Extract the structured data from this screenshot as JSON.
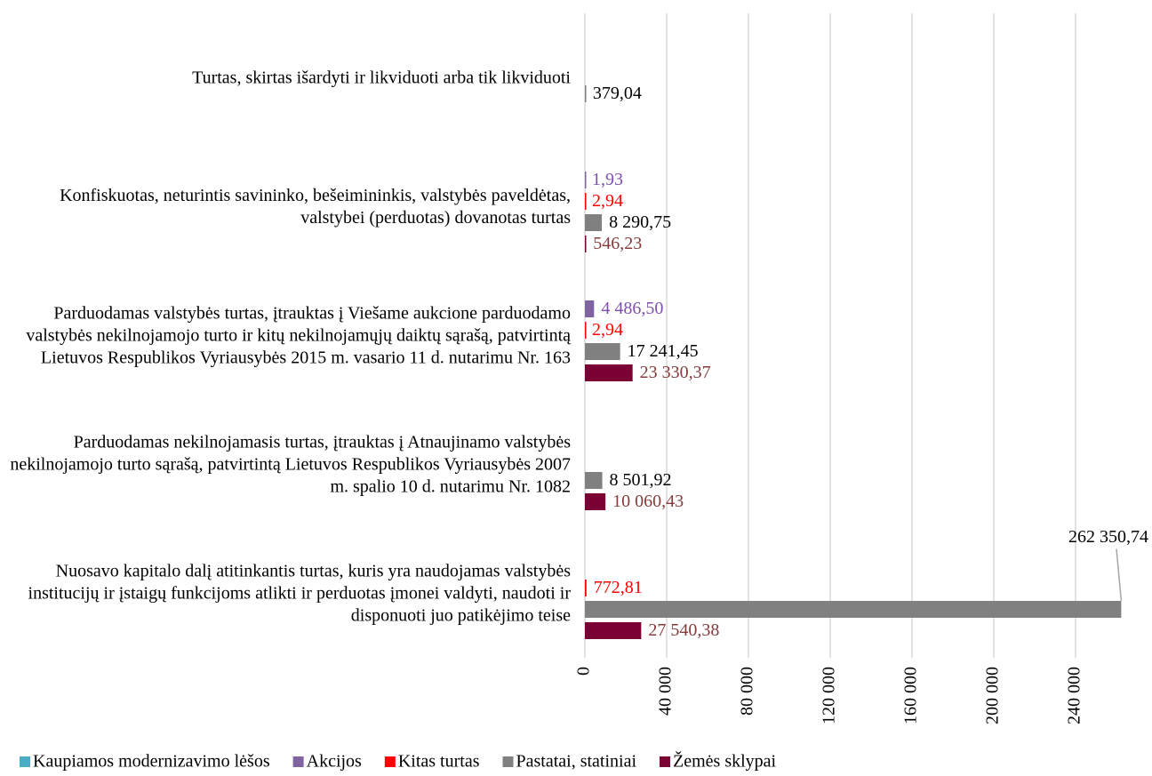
{
  "chart_data": {
    "type": "hbar",
    "categories": [
      "Turtas, skirtas išardyti ir likviduoti arba tik likviduoti",
      "Konfiskuotas, neturintis savininko, bešeimininkis, valstybės paveldėtas, valstybei (perduotas) dovanotas turtas",
      "Parduodamas valstybės turtas, įtrauktas į Viešame aukcione parduodamo valstybės nekilnojamojo turto ir kitų nekilnojamųjų daiktų sąrašą, patvirtintą Lietuvos Respublikos Vyriausybės 2015 m. vasario 11 d. nutarimu Nr. 163",
      "Parduodamas nekilnojamasis turtas, įtrauktas į Atnaujinamo valstybės nekilnojamojo turto sąrašą, patvirtintą Lietuvos Respublikos Vyriausybės 2007 m. spalio 10 d. nutarimu Nr. 1082",
      "Nuosavo kapitalo dalį atitinkantis turtas, kuris yra naudojamas valstybės institucijų ir įstaigų funkcijoms atlikti ir perduotas įmonei valdyti, naudoti ir disponuoti juo patikėjimo teise"
    ],
    "series": [
      {
        "name": "Kaupiamos modernizavimo lėšos",
        "color": "#4bacc6",
        "label_color": "#4bacc6",
        "values": [
          null,
          null,
          null,
          null,
          null
        ],
        "value_labels": [
          null,
          null,
          null,
          null,
          null
        ]
      },
      {
        "name": "Akcijos",
        "color": "#8064a2",
        "label_color": "#7f4fb0",
        "values": [
          null,
          1.93,
          4486.5,
          null,
          null
        ],
        "value_labels": [
          null,
          "1,93",
          "4 486,50",
          null,
          null
        ]
      },
      {
        "name": "Kitas turtas",
        "color": "#ff0000",
        "label_color": "#ff0000",
        "values": [
          null,
          2.94,
          2.94,
          null,
          772.81
        ],
        "value_labels": [
          null,
          "2,94",
          "2,94",
          null,
          "772,81"
        ]
      },
      {
        "name": "Pastatai, statiniai",
        "color": "#808080",
        "label_color": "#000000",
        "values": [
          379.04,
          8290.75,
          17241.45,
          8501.92,
          262350.74
        ],
        "value_labels": [
          "379,04",
          "8 290,75",
          "17 241,45",
          "8 501,92",
          "262 350,74"
        ]
      },
      {
        "name": "Žemės sklypai",
        "color": "#7b0034",
        "label_color": "#843c3c",
        "values": [
          null,
          546.23,
          23330.37,
          10060.43,
          27540.38
        ],
        "value_labels": [
          null,
          "546,23",
          "23 330,37",
          "10 060,43",
          "27 540,38"
        ]
      }
    ],
    "xlim": [
      0,
      260000
    ],
    "xticks": [
      0,
      {
        "value": 40000,
        "label": "40 000"
      },
      {
        "value": 80000,
        "label": "80 000"
      },
      {
        "value": 120000,
        "label": "120 000"
      },
      {
        "value": 160000,
        "label": "160 000"
      },
      {
        "value": 200000,
        "label": "200 000"
      },
      {
        "value": 240000,
        "label": "240 000"
      }
    ],
    "grid": true,
    "legend": "bottom"
  }
}
